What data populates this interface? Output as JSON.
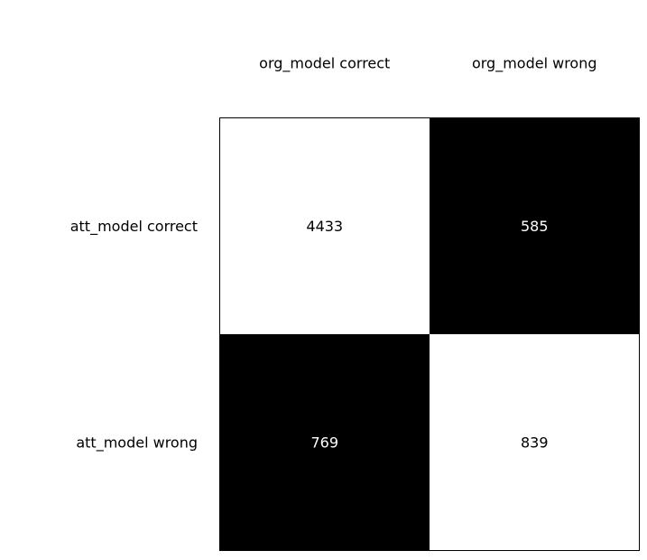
{
  "chart_data": {
    "type": "heatmap",
    "title": "",
    "xlabel": "",
    "ylabel": "",
    "x_categories": [
      "org_model correct",
      "org_model wrong"
    ],
    "y_categories": [
      "att_model correct",
      "att_model wrong"
    ],
    "values": [
      [
        4433,
        585
      ],
      [
        769,
        839
      ]
    ],
    "cell_colors": [
      [
        "#ffffff",
        "#000000"
      ],
      [
        "#000000",
        "#ffffff"
      ]
    ],
    "x_tick_position": "top",
    "grid": false,
    "legend": "none"
  }
}
